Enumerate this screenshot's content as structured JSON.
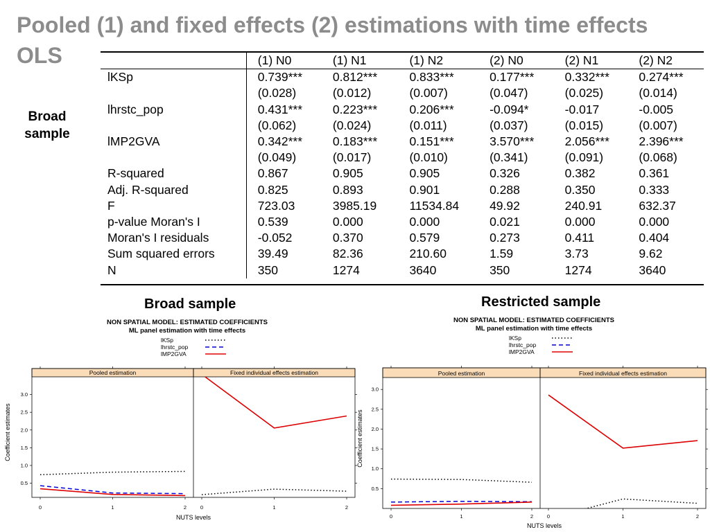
{
  "slide": {
    "title_line1": "Pooled (1) and fixed effects (2) estimations with time effects",
    "title_line2": "OLS",
    "side_label_line1": "Broad",
    "side_label_line2": "sample"
  },
  "table": {
    "columns": [
      "",
      "(1) N0",
      "(1) N1",
      "(1) N2",
      "(2) N0",
      "(2) N1",
      "(2) N2"
    ],
    "rows": [
      [
        "lKSp",
        "0.739***",
        "0.812***",
        "0.833***",
        "0.177***",
        "0.332***",
        "0.274***"
      ],
      [
        "",
        "(0.028)",
        "(0.012)",
        "(0.007)",
        "(0.047)",
        "(0.025)",
        "(0.014)"
      ],
      [
        "lhrstc_pop",
        "0.431***",
        "0.223***",
        "0.206***",
        "-0.094*",
        "-0.017",
        "-0.005"
      ],
      [
        "",
        "(0.062)",
        "(0.024)",
        "(0.011)",
        "(0.037)",
        "(0.015)",
        "(0.007)"
      ],
      [
        "lMP2GVA",
        "0.342***",
        "0.183***",
        "0.151***",
        "3.570***",
        "2.056***",
        "2.396***"
      ],
      [
        "",
        "(0.049)",
        "(0.017)",
        "(0.010)",
        "(0.341)",
        "(0.091)",
        "(0.068)"
      ],
      [
        "R-squared",
        "0.867",
        "0.905",
        "0.905",
        "0.326",
        "0.382",
        "0.361"
      ],
      [
        "Adj. R-squared",
        "0.825",
        "0.893",
        "0.901",
        "0.288",
        "0.350",
        "0.333"
      ],
      [
        "F",
        "723.03",
        "3985.19",
        "11534.84",
        "49.92",
        "240.91",
        "632.37"
      ],
      [
        "p-value Moran's I",
        "0.539",
        "0.000",
        "0.000",
        "0.021",
        "0.000",
        "0.000"
      ],
      [
        "Moran's I residuals",
        "-0.052",
        "0.370",
        "0.579",
        "0.273",
        "0.411",
        "0.404"
      ],
      [
        "Sum squared errors",
        "39.49",
        "82.36",
        "210.60",
        "1.59",
        "3.73",
        "9.62"
      ],
      [
        "N",
        "350",
        "1274",
        "3640",
        "350",
        "1274",
        "3640"
      ]
    ]
  },
  "broad_heading": "Broad sample",
  "restricted_heading": "Restricted sample",
  "chart_data": [
    {
      "type": "line",
      "title": "NON SPATIAL MODEL: ESTIMATED COEFFICIENTS",
      "subtitle": "ML panel estimation with time effects",
      "xlabel": "NUTS levels",
      "ylabel": "Coefficient estimates",
      "x": [
        0,
        1,
        2
      ],
      "ylim": [
        0.1,
        3.5
      ],
      "yticks": [
        "0.5",
        "1.0",
        "1.5",
        "2.0",
        "2.5",
        "3.0"
      ],
      "xticks": [
        "0",
        "1",
        "2"
      ],
      "legend_position": "top-center",
      "panels": [
        {
          "name": "Pooled estimation",
          "series": [
            {
              "name": "lKSp",
              "values": [
                0.739,
                0.812,
                0.833
              ],
              "style": "dotted",
              "color": "#000000"
            },
            {
              "name": "lhrstc_pop",
              "values": [
                0.431,
                0.223,
                0.206
              ],
              "style": "dashed",
              "color": "#0000cc"
            },
            {
              "name": "lMP2GVA",
              "values": [
                0.342,
                0.183,
                0.151
              ],
              "style": "solid",
              "color": "#dd0000"
            }
          ]
        },
        {
          "name": "Fixed individual effects estimation",
          "series": [
            {
              "name": "lKSp",
              "values": [
                0.177,
                0.332,
                0.274
              ],
              "style": "dotted",
              "color": "#000000"
            },
            {
              "name": "lhrstc_pop",
              "values": [
                -0.094,
                -0.017,
                -0.005
              ],
              "style": "dashed",
              "color": "#0000cc"
            },
            {
              "name": "lMP2GVA",
              "values": [
                3.57,
                2.056,
                2.396
              ],
              "style": "solid",
              "color": "#dd0000"
            }
          ]
        }
      ]
    },
    {
      "type": "line",
      "title": "NON SPATIAL MODEL: ESTIMATED COEFFICIENTS",
      "subtitle": "ML panel estimation with time effects",
      "xlabel": "NUTS levels",
      "ylabel": "Coefficient estimates",
      "x": [
        0,
        1,
        2
      ],
      "ylim": [
        0.0,
        3.3
      ],
      "yticks": [
        "0.5",
        "1.0",
        "1.5",
        "2.0",
        "2.5",
        "3.0"
      ],
      "xticks": [
        "0",
        "1",
        "2"
      ],
      "legend_position": "top-center",
      "panels": [
        {
          "name": "Pooled estimation",
          "series": [
            {
              "name": "lKSp",
              "values": [
                0.74,
                0.73,
                0.66
              ],
              "style": "dotted",
              "color": "#000000"
            },
            {
              "name": "lhrstc_pop",
              "values": [
                0.16,
                0.18,
                0.17
              ],
              "style": "dashed",
              "color": "#0000cc"
            },
            {
              "name": "lMP2GVA",
              "values": [
                0.08,
                0.11,
                0.16
              ],
              "style": "solid",
              "color": "#dd0000"
            }
          ]
        },
        {
          "name": "Fixed individual effects estimation",
          "series": [
            {
              "name": "lKSp",
              "values": [
                -0.25,
                0.24,
                0.13
              ],
              "style": "dotted",
              "color": "#000000"
            },
            {
              "name": "lhrstc_pop",
              "values": [
                -0.35,
                -0.3,
                -0.3
              ],
              "style": "dashed",
              "color": "#0000cc"
            },
            {
              "name": "lMP2GVA",
              "values": [
                2.86,
                1.52,
                1.71
              ],
              "style": "solid",
              "color": "#dd0000"
            }
          ]
        }
      ]
    }
  ]
}
